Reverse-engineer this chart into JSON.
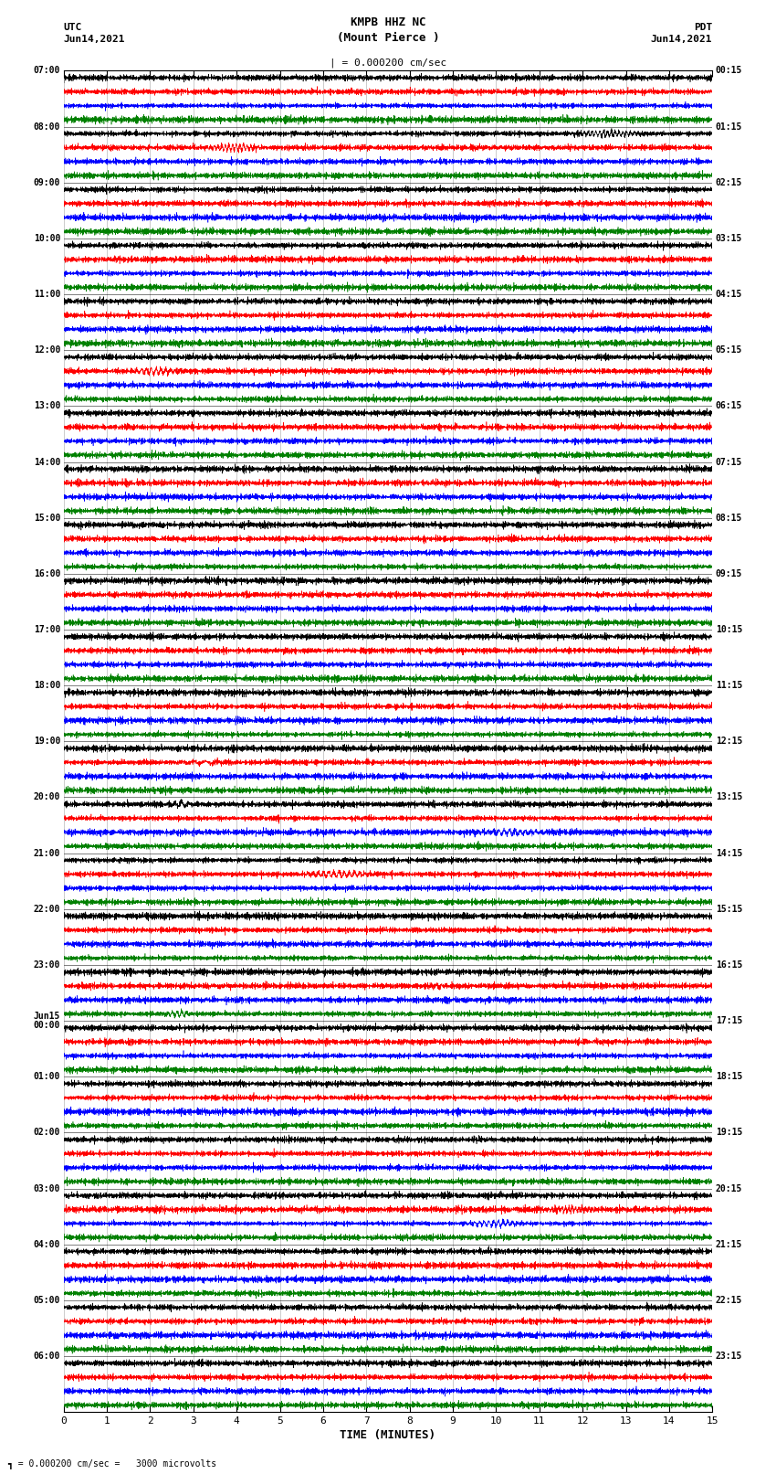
{
  "title_center": "KMPB HHZ NC\n(Mount Pierce )",
  "title_left": "UTC\nJun14,2021",
  "title_right": "PDT\nJun14,2021",
  "scale_text": "= 0.000200 cm/sec",
  "bottom_text": "= 0.000200 cm/sec =   3000 microvolts",
  "xlabel": "TIME (MINUTES)",
  "xticks": [
    0,
    1,
    2,
    3,
    4,
    5,
    6,
    7,
    8,
    9,
    10,
    11,
    12,
    13,
    14,
    15
  ],
  "left_times": [
    "07:00",
    "08:00",
    "09:00",
    "10:00",
    "11:00",
    "12:00",
    "13:00",
    "14:00",
    "15:00",
    "16:00",
    "17:00",
    "18:00",
    "19:00",
    "20:00",
    "21:00",
    "22:00",
    "23:00",
    "Jun15\n00:00",
    "01:00",
    "02:00",
    "03:00",
    "04:00",
    "05:00",
    "06:00"
  ],
  "right_times": [
    "00:15",
    "01:15",
    "02:15",
    "03:15",
    "04:15",
    "05:15",
    "06:15",
    "07:15",
    "08:15",
    "09:15",
    "10:15",
    "11:15",
    "12:15",
    "13:15",
    "14:15",
    "15:15",
    "16:15",
    "17:15",
    "18:15",
    "19:15",
    "20:15",
    "21:15",
    "22:15",
    "23:15"
  ],
  "colors": [
    "black",
    "red",
    "blue",
    "green"
  ],
  "n_groups": 24,
  "n_traces_per_group": 4,
  "minutes": 15,
  "bg_color": "white",
  "trace_amplitude": 0.38,
  "noise_seed": 12345,
  "n_points": 3600,
  "grid_color": "#888888",
  "grid_alpha": 0.6,
  "grid_lw": 0.5,
  "trace_lw": 0.4
}
